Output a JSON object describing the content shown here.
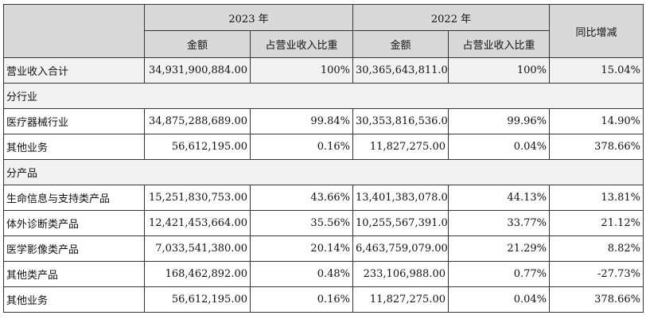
{
  "header": {
    "year_current": "2023 年",
    "year_prior": "2022 年",
    "yoy": "同比增减",
    "amount_current": "金额",
    "share_current": "占营业收入比重",
    "amount_prior": "金额",
    "share_prior": "占营业收入比重"
  },
  "rows": [
    {
      "kind": "data",
      "shade": true,
      "label": "营业收入合计",
      "amt_2023": "34,931,900,884.00",
      "pct_2023": "100%",
      "amt_2022": "30,365,643,811.00",
      "pct_2022": "100%",
      "yoy": "15.04%"
    },
    {
      "kind": "section",
      "label": "分行业"
    },
    {
      "kind": "data",
      "shade": false,
      "label": "医疗器械行业",
      "amt_2023": "34,875,288,689.00",
      "pct_2023": "99.84%",
      "amt_2022": "30,353,816,536.00",
      "pct_2022": "99.96%",
      "yoy": "14.90%"
    },
    {
      "kind": "data",
      "shade": false,
      "label": "其他业务",
      "amt_2023": "56,612,195.00",
      "pct_2023": "0.16%",
      "amt_2022": "11,827,275.00",
      "pct_2022": "0.04%",
      "yoy": "378.66%"
    },
    {
      "kind": "section",
      "label": "分产品"
    },
    {
      "kind": "data",
      "shade": false,
      "label": "生命信息与支持类产品",
      "amt_2023": "15,251,830,753.00",
      "pct_2023": "43.66%",
      "amt_2022": "13,401,383,078.00",
      "pct_2022": "44.13%",
      "yoy": "13.81%"
    },
    {
      "kind": "data",
      "shade": false,
      "label": "体外诊断类产品",
      "amt_2023": "12,421,453,664.00",
      "pct_2023": "35.56%",
      "amt_2022": "10,255,567,391.00",
      "pct_2022": "33.77%",
      "yoy": "21.12%"
    },
    {
      "kind": "data",
      "shade": false,
      "label": "医学影像类产品",
      "amt_2023": "7,033,541,380.00",
      "pct_2023": "20.14%",
      "amt_2022": "6,463,759,079.00",
      "pct_2022": "21.29%",
      "yoy": "8.82%"
    },
    {
      "kind": "data",
      "shade": false,
      "label": "其他类产品",
      "amt_2023": "168,462,892.00",
      "pct_2023": "0.48%",
      "amt_2022": "233,106,988.00",
      "pct_2022": "0.77%",
      "yoy": "-27.73%"
    },
    {
      "kind": "data",
      "shade": false,
      "label": "其他业务",
      "amt_2023": "56,612,195.00",
      "pct_2023": "0.16%",
      "amt_2022": "11,827,275.00",
      "pct_2022": "0.04%",
      "yoy": "378.66%"
    }
  ]
}
